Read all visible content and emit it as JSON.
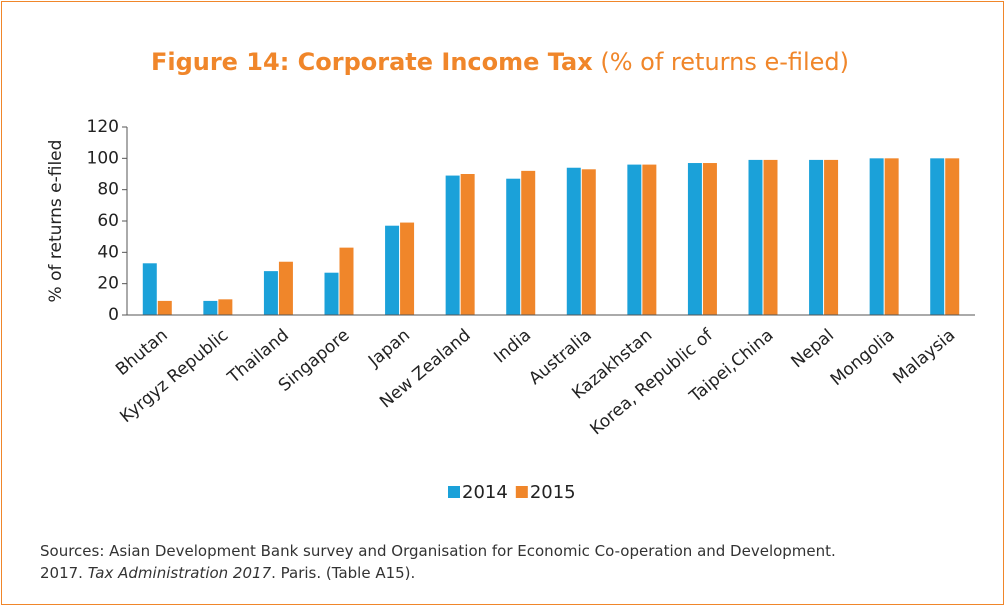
{
  "chart_data": {
    "type": "bar",
    "title": "Figure 14: Corporate Income Tax",
    "subtitle": "(% of returns e-filed)",
    "y_label": "% of returns e-filed",
    "categories": [
      "Bhutan",
      "Kyrgyz Republic",
      "Thailand",
      "Singapore",
      "Japan",
      "New Zealand",
      "India",
      "Australia",
      "Kazakhstan",
      "Korea, Republic of",
      "Taipei,China",
      "Nepal",
      "Mongolia",
      "Malaysia"
    ],
    "series": [
      {
        "name": "2014",
        "color": "#1ba1d9",
        "values": [
          33,
          9,
          28,
          27,
          57,
          89,
          87,
          94,
          96,
          97,
          99,
          99,
          100,
          100
        ]
      },
      {
        "name": "2015",
        "color": "#f0862a",
        "values": [
          9,
          10,
          34,
          43,
          59,
          90,
          92,
          93,
          96,
          97,
          99,
          99,
          100,
          100
        ]
      }
    ],
    "ylim": [
      0,
      120
    ],
    "yticks": [
      0,
      20,
      40,
      60,
      80,
      100,
      120
    ],
    "legend": "bottom",
    "source": [
      "Sources: Asian Development Bank survey and Organisation for Economic Co-operation and Development.",
      "2017. ",
      "Tax Administration 2017",
      ". Paris. (Table A15)."
    ]
  }
}
